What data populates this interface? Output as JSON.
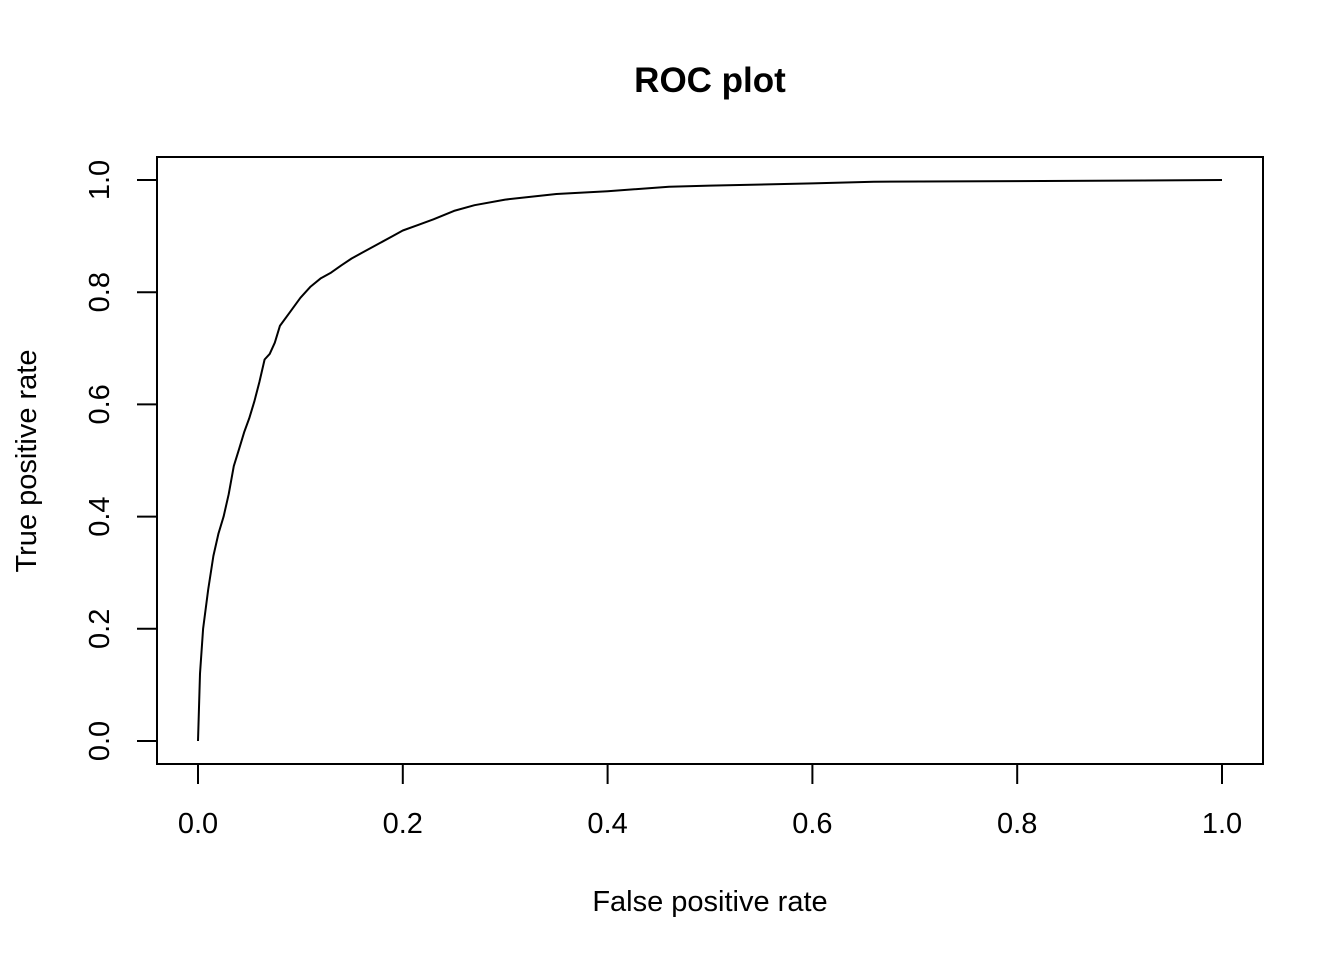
{
  "chart_data": {
    "type": "line",
    "title": "ROC plot",
    "xlabel": "False positive rate",
    "ylabel": "True positive rate",
    "xlim": [
      0,
      1
    ],
    "ylim": [
      0,
      1
    ],
    "x_ticks": [
      "0.0",
      "0.2",
      "0.4",
      "0.6",
      "0.8",
      "1.0"
    ],
    "y_ticks": [
      "0.0",
      "0.2",
      "0.4",
      "0.6",
      "0.8",
      "1.0"
    ],
    "grid": false,
    "legend": "none",
    "line_color": "#000000",
    "series": [
      {
        "x": [
          0.0,
          0.002,
          0.005,
          0.01,
          0.015,
          0.02,
          0.025,
          0.03,
          0.035,
          0.04,
          0.045,
          0.05,
          0.055,
          0.06,
          0.065,
          0.07,
          0.075,
          0.08,
          0.09,
          0.1,
          0.11,
          0.12,
          0.13,
          0.14,
          0.15,
          0.16,
          0.175,
          0.19,
          0.2,
          0.215,
          0.23,
          0.25,
          0.27,
          0.3,
          0.35,
          0.4,
          0.46,
          0.5,
          0.6,
          0.66,
          0.8,
          0.9,
          1.0
        ],
        "y": [
          0.0,
          0.12,
          0.2,
          0.27,
          0.33,
          0.37,
          0.4,
          0.44,
          0.49,
          0.52,
          0.55,
          0.575,
          0.605,
          0.64,
          0.68,
          0.69,
          0.71,
          0.74,
          0.765,
          0.79,
          0.81,
          0.825,
          0.835,
          0.848,
          0.86,
          0.87,
          0.885,
          0.9,
          0.91,
          0.92,
          0.93,
          0.945,
          0.955,
          0.965,
          0.975,
          0.98,
          0.988,
          0.99,
          0.994,
          0.997,
          0.998,
          0.999,
          1.0
        ]
      }
    ]
  }
}
